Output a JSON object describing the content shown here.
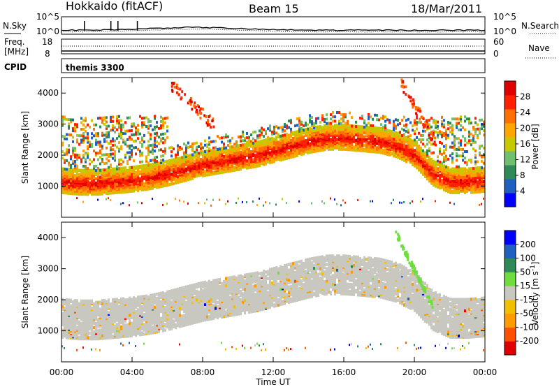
{
  "header": {
    "station": "Hokkaido (fitACF)",
    "beam": "Beam 15",
    "date": "18/Mar/2011"
  },
  "noise_panel": {
    "left_label": "N.Sky",
    "left_tick_top": "10^5",
    "left_tick_bottom": "10^0",
    "right_label": "N.Search",
    "right_tick_top": "10^5",
    "right_tick_bottom": "10^0"
  },
  "freq_panel": {
    "left_label_line1": "Freq.",
    "left_label_line2": "[MHz]",
    "left_tick_top": "18",
    "left_tick_bottom": "8",
    "right_label": "Nave",
    "right_tick_top": "60",
    "right_tick_bottom": "0"
  },
  "cpid_panel": {
    "label": "CPID",
    "value": "themis 3300"
  },
  "x_axis": {
    "label": "Time UT",
    "ticks": [
      "00:00",
      "04:00",
      "08:00",
      "12:00",
      "16:00",
      "20:00",
      "00:00"
    ]
  },
  "colors": {
    "power": [
      "#0000ff",
      "#2060c0",
      "#2e8b57",
      "#6fbf6f",
      "#c8c800",
      "#ffa500",
      "#ff7000",
      "#ff2000",
      "#e00000"
    ],
    "velocity": [
      "#e00000",
      "#ff5000",
      "#ff9a00",
      "#f0c000",
      "#c8c8c0",
      "#6fdd3f",
      "#2e8b57",
      "#2060c0",
      "#0000ff"
    ],
    "ground_scatter": "#c8c8c0"
  },
  "chart_data": [
    {
      "type": "heatmap",
      "name_panel": "power",
      "ylabel": "Slant Range [km]",
      "yticks": [
        "1000",
        "2000",
        "3000",
        "4000"
      ],
      "ylim": [
        0,
        4500
      ],
      "xlim": [
        "00:00",
        "24:00"
      ],
      "colorbar": {
        "label": "Power [dB]",
        "ticks": [
          "4",
          "8",
          "12",
          "16",
          "20",
          "24",
          "28"
        ],
        "range": [
          0,
          32
        ]
      },
      "band_center_km": [
        1150,
        1100,
        1100,
        1150,
        1200,
        1280,
        1400,
        1550,
        1700,
        1800,
        1900,
        2000,
        2150,
        2300,
        2450,
        2550,
        2550,
        2500,
        2450,
        2300,
        2000,
        1400,
        1150,
        1150,
        1200
      ]
    },
    {
      "type": "heatmap",
      "name_panel": "velocity",
      "ylabel": "Slant Range [km]",
      "yticks": [
        "1000",
        "2000",
        "3000",
        "4000"
      ],
      "ylim": [
        0,
        4500
      ],
      "xlim": [
        "00:00",
        "24:00"
      ],
      "colorbar": {
        "label": "Velocity [m s^-1]",
        "ticks": [
          "200",
          "100",
          "50",
          "15",
          "-15",
          "-50",
          "-100",
          "-200"
        ],
        "range": [
          -250,
          250
        ]
      }
    }
  ]
}
